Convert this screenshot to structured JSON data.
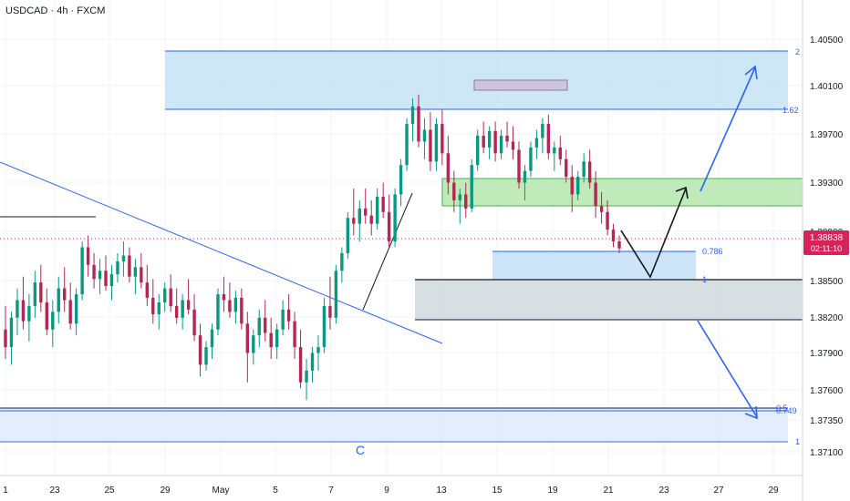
{
  "header": {
    "title": "USDCAD · 4h · FXCM"
  },
  "colors": {
    "up": "#089981",
    "down": "#b22852",
    "line": "#2962ff",
    "price_tag": "#d6235a",
    "green_zone": "#b5e6ad",
    "blue_zone": "#bcdff3"
  },
  "chart_data": {
    "type": "candlestick",
    "title": "USDCAD · 4h · FXCM",
    "price_axis": {
      "range": [
        1.3695,
        1.4095
      ],
      "ticks": [
        "1.40500",
        "1.40100",
        "1.39700",
        "1.39300",
        "1.38900",
        "1.38500",
        "1.38200",
        "1.37900",
        "1.37600",
        "1.37350",
        "1.37100"
      ]
    },
    "time_axis": {
      "ticks": [
        "1",
        "23",
        "25",
        "29",
        "May",
        "5",
        "7",
        "9",
        "13",
        "15",
        "19",
        "21",
        "23",
        "27",
        "29"
      ]
    },
    "current_price": {
      "value": "1.38838",
      "countdown": "02:11:10"
    },
    "fib_levels": [
      {
        "label": "2",
        "price": 1.4059
      },
      {
        "label": "1.62",
        "price": 1.3997
      },
      {
        "label": "0.786",
        "price": 1.3873
      },
      {
        "label": "1",
        "price": 1.385
      },
      {
        "label": "0.5",
        "price": 1.3745
      },
      {
        "label": "0.749",
        "price": 1.3744
      },
      {
        "label": "1",
        "price": 1.3712
      }
    ],
    "wave_label": "C",
    "zones": [
      {
        "name": "blue-target-zone",
        "from": 1.3997,
        "to": 1.4059
      },
      {
        "name": "green-resistance-zone",
        "from": 1.3915,
        "to": 1.3931
      },
      {
        "name": "gray-support-zone",
        "from": 1.382,
        "to": 1.385
      }
    ],
    "candles": [
      [
        1.3815,
        1.3835,
        1.379,
        1.38
      ],
      [
        1.38,
        1.383,
        1.3785,
        1.3825
      ],
      [
        1.3825,
        1.385,
        1.381,
        1.384
      ],
      [
        1.384,
        1.386,
        1.3815,
        1.3822
      ],
      [
        1.3822,
        1.3845,
        1.3805,
        1.3835
      ],
      [
        1.3835,
        1.3865,
        1.3825,
        1.3855
      ],
      [
        1.3855,
        1.387,
        1.383,
        1.3838
      ],
      [
        1.3838,
        1.385,
        1.381,
        1.3815
      ],
      [
        1.3815,
        1.384,
        1.38,
        1.383
      ],
      [
        1.383,
        1.386,
        1.382,
        1.385
      ],
      [
        1.385,
        1.3868,
        1.383,
        1.384
      ],
      [
        1.384,
        1.3855,
        1.3815,
        1.382
      ],
      [
        1.382,
        1.385,
        1.381,
        1.3845
      ],
      [
        1.3845,
        1.389,
        1.384,
        1.3885
      ],
      [
        1.3885,
        1.3895,
        1.386,
        1.387
      ],
      [
        1.387,
        1.388,
        1.385,
        1.3858
      ],
      [
        1.3858,
        1.3875,
        1.3845,
        1.3865
      ],
      [
        1.3865,
        1.3878,
        1.3848,
        1.3852
      ],
      [
        1.3852,
        1.387,
        1.384,
        1.3862
      ],
      [
        1.3862,
        1.388,
        1.3855,
        1.3873
      ],
      [
        1.3873,
        1.389,
        1.386,
        1.3878
      ],
      [
        1.3878,
        1.3885,
        1.3855,
        1.386
      ],
      [
        1.386,
        1.3875,
        1.3845,
        1.3868
      ],
      [
        1.3868,
        1.388,
        1.385,
        1.3855
      ],
      [
        1.3855,
        1.387,
        1.3835,
        1.3842
      ],
      [
        1.3842,
        1.3858,
        1.382,
        1.3828
      ],
      [
        1.3828,
        1.3845,
        1.3815,
        1.3838
      ],
      [
        1.3838,
        1.3855,
        1.383,
        1.385
      ],
      [
        1.385,
        1.3862,
        1.383,
        1.3835
      ],
      [
        1.3835,
        1.385,
        1.382,
        1.3825
      ],
      [
        1.3825,
        1.3845,
        1.3815,
        1.384
      ],
      [
        1.384,
        1.3858,
        1.3828,
        1.3832
      ],
      [
        1.3832,
        1.3845,
        1.3805,
        1.381
      ],
      [
        1.381,
        1.382,
        1.3775,
        1.3785
      ],
      [
        1.3785,
        1.3805,
        1.378,
        1.38
      ],
      [
        1.38,
        1.382,
        1.379,
        1.3815
      ],
      [
        1.3815,
        1.385,
        1.381,
        1.3845
      ],
      [
        1.3845,
        1.386,
        1.383,
        1.384
      ],
      [
        1.384,
        1.3855,
        1.3825,
        1.383
      ],
      [
        1.383,
        1.3848,
        1.382,
        1.3842
      ],
      [
        1.3842,
        1.385,
        1.3815,
        1.382
      ],
      [
        1.382,
        1.383,
        1.377,
        1.3795
      ],
      [
        1.3795,
        1.3815,
        1.3785,
        1.381
      ],
      [
        1.381,
        1.3832,
        1.38,
        1.3825
      ],
      [
        1.3825,
        1.384,
        1.3805,
        1.3812
      ],
      [
        1.3812,
        1.3825,
        1.379,
        1.38
      ],
      [
        1.38,
        1.382,
        1.379,
        1.3815
      ],
      [
        1.3815,
        1.384,
        1.381,
        1.3832
      ],
      [
        1.3832,
        1.3845,
        1.3815,
        1.3822
      ],
      [
        1.3822,
        1.383,
        1.379,
        1.38
      ],
      [
        1.38,
        1.3815,
        1.3765,
        1.377
      ],
      [
        1.377,
        1.379,
        1.3755,
        1.378
      ],
      [
        1.378,
        1.38,
        1.377,
        1.3795
      ],
      [
        1.3795,
        1.381,
        1.378,
        1.38
      ],
      [
        1.38,
        1.3842,
        1.3795,
        1.3835
      ],
      [
        1.3835,
        1.386,
        1.3815,
        1.3825
      ],
      [
        1.3825,
        1.387,
        1.382,
        1.3865
      ],
      [
        1.3865,
        1.3885,
        1.3855,
        1.388
      ],
      [
        1.388,
        1.3915,
        1.3875,
        1.391
      ],
      [
        1.391,
        1.3935,
        1.3895,
        1.3905
      ],
      [
        1.3905,
        1.3925,
        1.389,
        1.3918
      ],
      [
        1.3918,
        1.3935,
        1.3905,
        1.3912
      ],
      [
        1.3912,
        1.3925,
        1.3895,
        1.3905
      ],
      [
        1.3905,
        1.3935,
        1.39,
        1.3928
      ],
      [
        1.3928,
        1.394,
        1.391,
        1.3915
      ],
      [
        1.3915,
        1.393,
        1.3885,
        1.389
      ],
      [
        1.389,
        1.3935,
        1.3885,
        1.393
      ],
      [
        1.393,
        1.396,
        1.392,
        1.3955
      ],
      [
        1.3955,
        1.3995,
        1.395,
        1.399
      ],
      [
        1.399,
        1.4012,
        1.3975,
        1.4005
      ],
      [
        1.4005,
        1.4015,
        1.397,
        1.3975
      ],
      [
        1.3975,
        1.3995,
        1.396,
        1.3985
      ],
      [
        1.3985,
        1.4,
        1.395,
        1.3958
      ],
      [
        1.3958,
        1.3995,
        1.395,
        1.399
      ],
      [
        1.399,
        1.4002,
        1.3955,
        1.3965
      ],
      [
        1.3965,
        1.398,
        1.393,
        1.394
      ],
      [
        1.394,
        1.395,
        1.3915,
        1.3925
      ],
      [
        1.3925,
        1.3935,
        1.3905,
        1.393
      ],
      [
        1.393,
        1.394,
        1.391,
        1.3918
      ],
      [
        1.3918,
        1.396,
        1.3915,
        1.3955
      ],
      [
        1.3955,
        1.3985,
        1.395,
        1.398
      ],
      [
        1.398,
        1.3992,
        1.3965,
        1.397
      ],
      [
        1.397,
        1.3988,
        1.396,
        1.3984
      ],
      [
        1.3984,
        1.3992,
        1.3958,
        1.3965
      ],
      [
        1.3965,
        1.3985,
        1.396,
        1.398
      ],
      [
        1.398,
        1.3992,
        1.397,
        1.3975
      ],
      [
        1.3975,
        1.3988,
        1.396,
        1.3968
      ],
      [
        1.3968,
        1.3975,
        1.3935,
        1.394
      ],
      [
        1.394,
        1.3955,
        1.3925,
        1.395
      ],
      [
        1.395,
        1.3975,
        1.3945,
        1.397
      ],
      [
        1.397,
        1.3985,
        1.396,
        1.3978
      ],
      [
        1.3978,
        1.3995,
        1.3965,
        1.399
      ],
      [
        1.399,
        1.3998,
        1.396,
        1.3965
      ],
      [
        1.3965,
        1.3975,
        1.395,
        1.397
      ],
      [
        1.397,
        1.398,
        1.3955,
        1.396
      ],
      [
        1.396,
        1.3968,
        1.394,
        1.3945
      ],
      [
        1.3945,
        1.3955,
        1.3915,
        1.393
      ],
      [
        1.393,
        1.395,
        1.3925,
        1.3945
      ],
      [
        1.3945,
        1.3965,
        1.394,
        1.3958
      ],
      [
        1.3958,
        1.3968,
        1.3935,
        1.394
      ],
      [
        1.394,
        1.395,
        1.391,
        1.392
      ],
      [
        1.392,
        1.3932,
        1.3905,
        1.3915
      ],
      [
        1.3915,
        1.3925,
        1.3895,
        1.39
      ],
      [
        1.39,
        1.3905,
        1.3885,
        1.389
      ],
      [
        1.389,
        1.3895,
        1.388,
        1.3884
      ]
    ]
  }
}
